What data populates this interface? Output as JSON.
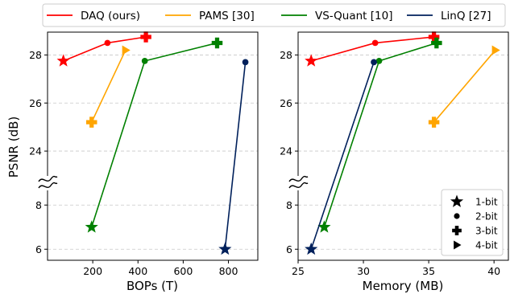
{
  "legend": [
    {
      "name": "DAQ (ours)",
      "color": "#ff0000"
    },
    {
      "name": "PAMS [30]",
      "color": "#ffa500"
    },
    {
      "name": "VS-Quant [10]",
      "color": "#008000"
    },
    {
      "name": "LinQ [27]",
      "color": "#00205b"
    }
  ],
  "ylabel": "PSNR (dB)",
  "marker_legend": [
    {
      "label": "1-bit",
      "marker": "star"
    },
    {
      "label": "2-bit",
      "marker": "circle"
    },
    {
      "label": "3-bit",
      "marker": "plus"
    },
    {
      "label": "4-bit",
      "marker": "triangle-right"
    }
  ],
  "chart_data": [
    {
      "type": "line",
      "xlabel": "BOPs (T)",
      "ylabel": "PSNR (dB)",
      "xlim": [
        0,
        930
      ],
      "x_ticks": [
        200,
        400,
        600,
        800
      ],
      "y_ticks": [
        6,
        8,
        24,
        26,
        28
      ],
      "y_axis_broken": true,
      "y_break": "between 8 and 24",
      "grid": "y dashed",
      "series": [
        {
          "name": "DAQ (ours)",
          "color": "#ff0000",
          "points": [
            {
              "x": 70,
              "y": 27.75,
              "bit": "1-bit"
            },
            {
              "x": 265,
              "y": 28.5,
              "bit": "2-bit"
            },
            {
              "x": 435,
              "y": 28.75,
              "bit": "3-bit"
            }
          ]
        },
        {
          "name": "PAMS [30]",
          "color": "#ffa500",
          "points": [
            {
              "x": 195,
              "y": 25.2,
              "bit": "3-bit"
            },
            {
              "x": 345,
              "y": 28.2,
              "bit": "4-bit"
            }
          ]
        },
        {
          "name": "VS-Quant [10]",
          "color": "#008000",
          "points": [
            {
              "x": 195,
              "y": 7.0,
              "bit": "1-bit"
            },
            {
              "x": 430,
              "y": 27.75,
              "bit": "2-bit"
            },
            {
              "x": 750,
              "y": 28.5,
              "bit": "3-bit"
            }
          ]
        },
        {
          "name": "LinQ [27]",
          "color": "#00205b",
          "points": [
            {
              "x": 785,
              "y": 6.0,
              "bit": "1-bit"
            },
            {
              "x": 875,
              "y": 27.7,
              "bit": "2-bit"
            }
          ]
        }
      ]
    },
    {
      "type": "line",
      "xlabel": "Memory (MB)",
      "ylabel": "",
      "xlim": [
        25,
        41.1
      ],
      "x_ticks": [
        25,
        30,
        35,
        40
      ],
      "y_ticks": [
        6,
        8,
        24,
        26,
        28
      ],
      "y_axis_broken": true,
      "y_break": "between 8 and 24",
      "grid": "y dashed",
      "legend_position": "bottom-right",
      "series": [
        {
          "name": "DAQ (ours)",
          "color": "#ff0000",
          "points": [
            {
              "x": 26.0,
              "y": 27.75,
              "bit": "1-bit"
            },
            {
              "x": 30.9,
              "y": 28.5,
              "bit": "2-bit"
            },
            {
              "x": 35.4,
              "y": 28.75,
              "bit": "3-bit"
            }
          ]
        },
        {
          "name": "PAMS [30]",
          "color": "#ffa500",
          "points": [
            {
              "x": 35.4,
              "y": 25.2,
              "bit": "3-bit"
            },
            {
              "x": 40.1,
              "y": 28.2,
              "bit": "4-bit"
            }
          ]
        },
        {
          "name": "VS-Quant [10]",
          "color": "#008000",
          "points": [
            {
              "x": 27.0,
              "y": 7.0,
              "bit": "1-bit"
            },
            {
              "x": 31.2,
              "y": 27.75,
              "bit": "2-bit"
            },
            {
              "x": 35.6,
              "y": 28.5,
              "bit": "3-bit"
            }
          ]
        },
        {
          "name": "LinQ [27]",
          "color": "#00205b",
          "points": [
            {
              "x": 26.0,
              "y": 6.0,
              "bit": "1-bit"
            },
            {
              "x": 30.8,
              "y": 27.7,
              "bit": "2-bit"
            }
          ]
        }
      ]
    }
  ]
}
